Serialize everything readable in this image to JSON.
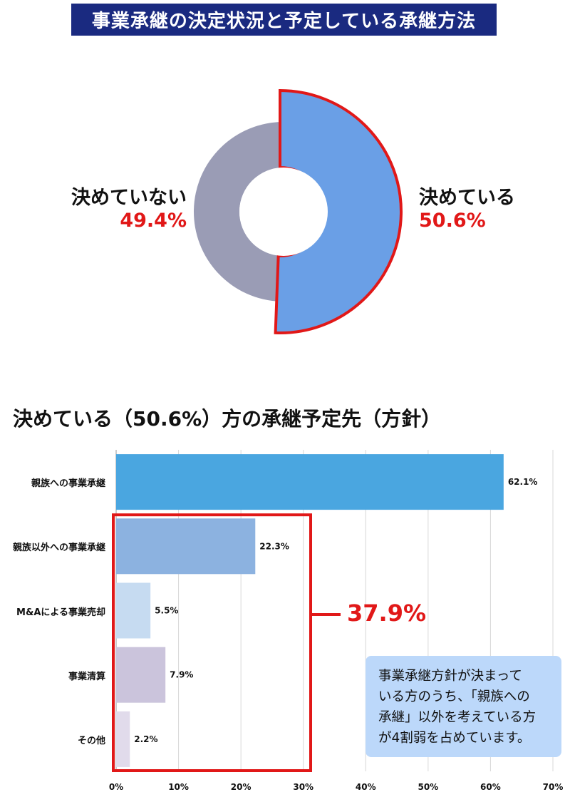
{
  "page_title": "事業承継の決定状況と予定している承継方法",
  "chart_data": [
    {
      "type": "pie",
      "variant": "donut",
      "title": "",
      "slices": [
        {
          "label": "決めている",
          "value": 50.6,
          "value_label": "50.6%",
          "color": "#6a9fe6",
          "highlighted": true
        },
        {
          "label": "決めていない",
          "value": 49.4,
          "value_label": "49.4%",
          "color": "#9a9cb5",
          "highlighted": false
        }
      ]
    },
    {
      "type": "bar",
      "orientation": "horizontal",
      "title": "決めている（50.6%）方の承継予定先（方針）",
      "categories": [
        "親族への事業承継",
        "親族以外への事業承継",
        "M&Aによる事業売却",
        "事業清算",
        "その他"
      ],
      "values": [
        62.1,
        22.3,
        5.5,
        7.9,
        2.2
      ],
      "value_labels": [
        "62.1%",
        "22.3%",
        "5.5%",
        "7.9%",
        "2.2%"
      ],
      "colors": [
        "#4aa6e0",
        "#8cb2e0",
        "#c6dbf1",
        "#cbc4dc",
        "#e1dbeb"
      ],
      "xlim": [
        0,
        70
      ],
      "x_ticks": [
        "0%",
        "10%",
        "20%",
        "30%",
        "40%",
        "50%",
        "60%",
        "70%"
      ],
      "grid": true,
      "legend": "none",
      "annotation": {
        "text": "37.9%",
        "covers": [
          "親族以外への事業承継",
          "M&Aによる事業売却",
          "事業清算",
          "その他"
        ]
      }
    }
  ],
  "callout": {
    "lines": [
      "事業承継方針が決まって",
      "いる方のうち、「親族への",
      "承継」以外を考えている方",
      "が4割弱を占めています。"
    ],
    "color": "#bcd8fa"
  },
  "colors": {
    "banner": "#1a2a80",
    "highlight": "#e11818"
  }
}
